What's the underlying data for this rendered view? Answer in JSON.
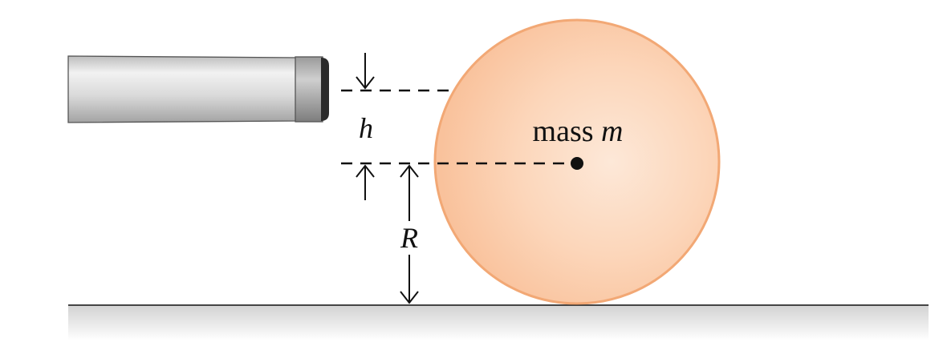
{
  "labels": {
    "mass_word": "mass",
    "mass_symbol": "m",
    "height_symbol": "h",
    "radius_symbol": "R"
  },
  "colors": {
    "ball_fill": "#fbcfae",
    "ball_highlight": "#fde6d4",
    "ball_edge": "#f0a876",
    "cue_light": "#ececec",
    "cue_dark": "#a9a9a9",
    "cue_tip": "#8c8c8c",
    "ground_shadow": "#d7d7d7",
    "ink": "#111111"
  }
}
